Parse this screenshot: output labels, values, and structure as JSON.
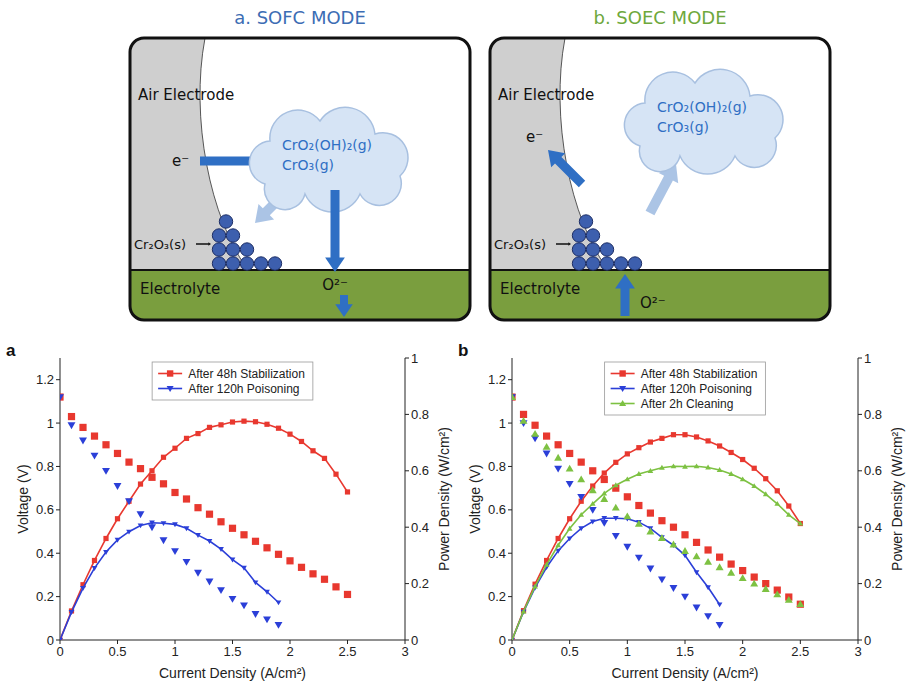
{
  "diagrams": [
    {
      "title": "a. SOFC MODE",
      "air_electrode": "Air Electrode",
      "electron": "e⁻",
      "gases": [
        "CrO₂(OH)₂(g)",
        "CrO₃(g)"
      ],
      "deposit": "Cr₂O₃(s)",
      "electrolyte": "Electrolyte",
      "ion": "O²⁻"
    },
    {
      "title": "b. SOEC MODE",
      "air_electrode": "Air Electrode",
      "electron": "e⁻",
      "gases": [
        "CrO₂(OH)₂(g)",
        "CrO₃(g)"
      ],
      "deposit": "Cr₂O₃(s)",
      "electrolyte": "Electrolyte",
      "ion": "O²⁻"
    }
  ],
  "chart_data": [
    {
      "type": "line",
      "panel_label": "a",
      "x_label": "Current Density (A/cm²)",
      "y_label": "Voltage (V)",
      "y2_label": "Power Density (W/cm²)",
      "xlim": [
        0,
        3
      ],
      "xticks": [
        0,
        0.5,
        1,
        1.5,
        2,
        2.5,
        3
      ],
      "ylim": [
        0,
        1.3
      ],
      "yticks": [
        0,
        0.2,
        0.4,
        0.6,
        0.8,
        1,
        1.2
      ],
      "y2lim": [
        0,
        1
      ],
      "y2ticks": [
        0,
        0.2,
        0.4,
        0.6,
        0.8,
        1
      ],
      "grid": false,
      "legend": "upper center",
      "series": [
        {
          "name": "After 48h Stabilization",
          "type": "scatter",
          "color": "#e8382f",
          "marker": "square",
          "x": [
            0,
            0.1,
            0.2,
            0.3,
            0.4,
            0.5,
            0.6,
            0.7,
            0.8,
            0.9,
            1,
            1.1,
            1.2,
            1.3,
            1.4,
            1.5,
            1.6,
            1.7,
            1.8,
            1.9,
            2,
            2.1,
            2.2,
            2.3,
            2.4,
            2.5
          ],
          "values": [
            1.12,
            1.03,
            0.98,
            0.94,
            0.9,
            0.86,
            0.82,
            0.79,
            0.75,
            0.72,
            0.68,
            0.65,
            0.61,
            0.58,
            0.545,
            0.515,
            0.485,
            0.455,
            0.425,
            0.395,
            0.365,
            0.335,
            0.305,
            0.28,
            0.245,
            0.21
          ]
        },
        {
          "name": "After 48h Stabilization",
          "type": "line",
          "axis": "y2",
          "color": "#e8382f",
          "marker": "square",
          "x": [
            0,
            0.1,
            0.2,
            0.3,
            0.4,
            0.5,
            0.6,
            0.7,
            0.8,
            0.9,
            1,
            1.1,
            1.2,
            1.3,
            1.4,
            1.5,
            1.6,
            1.7,
            1.8,
            1.9,
            2,
            2.1,
            2.2,
            2.3,
            2.4,
            2.5
          ],
          "values": [
            0,
            0.103,
            0.196,
            0.282,
            0.36,
            0.43,
            0.492,
            0.553,
            0.6,
            0.648,
            0.68,
            0.715,
            0.732,
            0.754,
            0.763,
            0.773,
            0.776,
            0.774,
            0.765,
            0.751,
            0.73,
            0.704,
            0.671,
            0.644,
            0.588,
            0.525
          ]
        },
        {
          "name": "After 120h Poisoning",
          "type": "scatter",
          "color": "#2b3fd8",
          "marker": "triangle-down",
          "x": [
            0,
            0.1,
            0.2,
            0.3,
            0.4,
            0.5,
            0.6,
            0.7,
            0.8,
            0.9,
            1,
            1.1,
            1.2,
            1.3,
            1.4,
            1.5,
            1.6,
            1.7,
            1.8,
            1.9
          ],
          "values": [
            1.12,
            0.99,
            0.92,
            0.85,
            0.78,
            0.71,
            0.64,
            0.58,
            0.52,
            0.46,
            0.41,
            0.36,
            0.31,
            0.27,
            0.23,
            0.19,
            0.16,
            0.12,
            0.095,
            0.07
          ]
        },
        {
          "name": "After 120h Poisoning",
          "type": "line",
          "axis": "y2",
          "color": "#2b3fd8",
          "marker": "triangle-down",
          "x": [
            0,
            0.1,
            0.2,
            0.3,
            0.4,
            0.5,
            0.6,
            0.7,
            0.8,
            0.9,
            1,
            1.1,
            1.2,
            1.3,
            1.4,
            1.5,
            1.6,
            1.7,
            1.8,
            1.9
          ],
          "values": [
            0,
            0.099,
            0.184,
            0.255,
            0.312,
            0.355,
            0.384,
            0.406,
            0.416,
            0.414,
            0.41,
            0.396,
            0.372,
            0.351,
            0.322,
            0.285,
            0.256,
            0.204,
            0.171,
            0.133
          ]
        }
      ]
    },
    {
      "type": "line",
      "panel_label": "b",
      "x_label": "Current Density (A/cm²)",
      "y_label": "Voltage (V)",
      "y2_label": "Power Density (W/cm²)",
      "xlim": [
        0,
        3
      ],
      "xticks": [
        0,
        0.5,
        1,
        1.5,
        2,
        2.5,
        3
      ],
      "ylim": [
        0,
        1.3
      ],
      "yticks": [
        0,
        0.2,
        0.4,
        0.6,
        0.8,
        1,
        1.2
      ],
      "y2lim": [
        0,
        1
      ],
      "y2ticks": [
        0,
        0.2,
        0.4,
        0.6,
        0.8,
        1
      ],
      "grid": false,
      "legend": "upper center",
      "series": [
        {
          "name": "After 48h Stabilization",
          "type": "scatter",
          "color": "#e8382f",
          "marker": "square",
          "x": [
            0,
            0.1,
            0.2,
            0.3,
            0.4,
            0.5,
            0.6,
            0.7,
            0.8,
            0.9,
            1,
            1.1,
            1.2,
            1.3,
            1.4,
            1.5,
            1.6,
            1.7,
            1.8,
            1.9,
            2,
            2.1,
            2.2,
            2.3,
            2.4,
            2.5
          ],
          "values": [
            1.12,
            1.04,
            0.99,
            0.94,
            0.9,
            0.86,
            0.82,
            0.78,
            0.74,
            0.7,
            0.66,
            0.62,
            0.585,
            0.55,
            0.52,
            0.485,
            0.45,
            0.415,
            0.382,
            0.35,
            0.32,
            0.29,
            0.26,
            0.23,
            0.198,
            0.165
          ]
        },
        {
          "name": "After 48h Stabilization",
          "type": "line",
          "axis": "y2",
          "color": "#e8382f",
          "marker": "square",
          "x": [
            0,
            0.1,
            0.2,
            0.3,
            0.4,
            0.5,
            0.6,
            0.7,
            0.8,
            0.9,
            1,
            1.1,
            1.2,
            1.3,
            1.4,
            1.5,
            1.6,
            1.7,
            1.8,
            1.9,
            2,
            2.1,
            2.2,
            2.3,
            2.4,
            2.5
          ],
          "values": [
            0,
            0.104,
            0.198,
            0.282,
            0.36,
            0.43,
            0.492,
            0.546,
            0.592,
            0.63,
            0.66,
            0.682,
            0.702,
            0.715,
            0.728,
            0.728,
            0.72,
            0.706,
            0.688,
            0.665,
            0.64,
            0.609,
            0.572,
            0.529,
            0.475,
            0.413
          ]
        },
        {
          "name": "After 120h Poisoning",
          "type": "scatter",
          "color": "#2b3fd8",
          "marker": "triangle-down",
          "x": [
            0,
            0.1,
            0.2,
            0.3,
            0.4,
            0.5,
            0.6,
            0.7,
            0.8,
            0.9,
            1,
            1.1,
            1.2,
            1.3,
            1.4,
            1.5,
            1.6,
            1.7,
            1.8
          ],
          "values": [
            1.12,
            1.0,
            0.93,
            0.86,
            0.79,
            0.72,
            0.66,
            0.6,
            0.54,
            0.48,
            0.43,
            0.38,
            0.33,
            0.28,
            0.24,
            0.2,
            0.15,
            0.11,
            0.07
          ]
        },
        {
          "name": "After 120h Poisoning",
          "type": "line",
          "axis": "y2",
          "color": "#2b3fd8",
          "marker": "triangle-down",
          "x": [
            0,
            0.1,
            0.2,
            0.3,
            0.4,
            0.5,
            0.6,
            0.7,
            0.8,
            0.9,
            1,
            1.1,
            1.2,
            1.3,
            1.4,
            1.5,
            1.6,
            1.7,
            1.8
          ],
          "values": [
            0,
            0.1,
            0.186,
            0.258,
            0.316,
            0.36,
            0.396,
            0.42,
            0.432,
            0.432,
            0.43,
            0.418,
            0.396,
            0.364,
            0.336,
            0.3,
            0.24,
            0.187,
            0.126
          ]
        },
        {
          "name": "After 2h Cleaning",
          "type": "scatter",
          "color": "#7dc142",
          "marker": "triangle-up",
          "x": [
            0,
            0.1,
            0.2,
            0.3,
            0.4,
            0.5,
            0.6,
            0.7,
            0.8,
            0.9,
            1,
            1.1,
            1.2,
            1.3,
            1.4,
            1.5,
            1.6,
            1.7,
            1.8,
            1.9,
            2,
            2.1,
            2.2,
            2.3,
            2.4,
            2.5
          ],
          "values": [
            1.12,
            1.01,
            0.95,
            0.89,
            0.84,
            0.79,
            0.74,
            0.69,
            0.65,
            0.61,
            0.57,
            0.535,
            0.5,
            0.47,
            0.44,
            0.41,
            0.385,
            0.36,
            0.335,
            0.31,
            0.285,
            0.26,
            0.235,
            0.21,
            0.185,
            0.165
          ]
        },
        {
          "name": "After 2h Cleaning",
          "type": "line",
          "axis": "y2",
          "color": "#7dc142",
          "marker": "triangle-up",
          "x": [
            0,
            0.1,
            0.2,
            0.3,
            0.4,
            0.5,
            0.6,
            0.7,
            0.8,
            0.9,
            1,
            1.1,
            1.2,
            1.3,
            1.4,
            1.5,
            1.6,
            1.7,
            1.8,
            1.9,
            2,
            2.1,
            2.2,
            2.3,
            2.4,
            2.5
          ],
          "values": [
            0,
            0.101,
            0.19,
            0.267,
            0.336,
            0.395,
            0.444,
            0.483,
            0.52,
            0.549,
            0.57,
            0.589,
            0.6,
            0.611,
            0.616,
            0.615,
            0.616,
            0.612,
            0.603,
            0.589,
            0.57,
            0.546,
            0.517,
            0.483,
            0.444,
            0.413
          ]
        }
      ]
    }
  ]
}
